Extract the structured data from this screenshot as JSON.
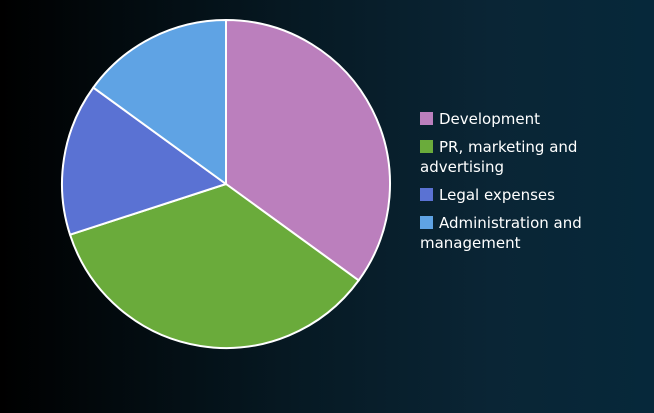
{
  "chart_data": {
    "type": "pie",
    "title": "",
    "legend_position": "right",
    "slices": [
      {
        "label": "Development",
        "value": 35,
        "color": "#bb7fbd"
      },
      {
        "label": "PR, marketing and advertising",
        "value": 35,
        "color": "#6aab3b"
      },
      {
        "label": "Legal expenses",
        "value": 15,
        "color": "#5a72d3"
      },
      {
        "label": "Administration and management",
        "value": 15,
        "color": "#5fa3e4"
      }
    ]
  }
}
